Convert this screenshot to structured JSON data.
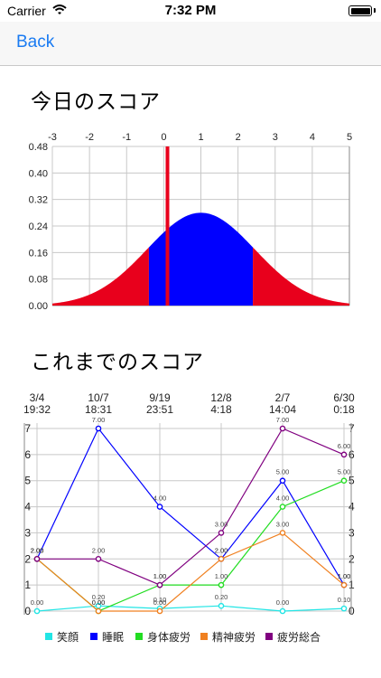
{
  "status_bar": {
    "carrier": "Carrier",
    "time": "7:32 PM"
  },
  "nav": {
    "back_label": "Back"
  },
  "sections": {
    "today_title": "今日のスコア",
    "history_title": "これまでのスコア"
  },
  "colors": {
    "accent": "#1a7bf2",
    "red": "#e8001c",
    "blue": "#0000ff"
  },
  "chart_data": [
    {
      "type": "area",
      "title": "",
      "x_top_ticks": [
        "-3",
        "-2",
        "-1",
        "0",
        "1",
        "2",
        "3",
        "4",
        "5"
      ],
      "y_ticks": [
        "0.48",
        "0.40",
        "0.32",
        "0.24",
        "0.16",
        "0.08",
        "0.00"
      ],
      "xlim": [
        -3,
        5
      ],
      "ylim": [
        0,
        0.48
      ],
      "distribution": {
        "mean": 1,
        "sd": 1.45
      },
      "blue_range": [
        -0.4,
        2.4
      ],
      "marker_x": 0.1,
      "grid": true
    },
    {
      "type": "line",
      "title": "",
      "categories": [
        "3/4\n19:32",
        "10/7\n18:31",
        "9/19\n23:51",
        "12/8\n4:18",
        "2/7\n14:04",
        "6/30\n0:18"
      ],
      "y_ticks": [
        "0",
        "1",
        "2",
        "3",
        "4",
        "5",
        "6",
        "7"
      ],
      "ylim": [
        0,
        7
      ],
      "grid": true,
      "series": [
        {
          "name": "笑顔",
          "color": "#22e5e5",
          "values": [
            0,
            0.2,
            0.1,
            0.2,
            0,
            0.1
          ]
        },
        {
          "name": "睡眠",
          "color": "#0000ff",
          "values": [
            2,
            7,
            4,
            2,
            5,
            1
          ]
        },
        {
          "name": "身体疲労",
          "color": "#22dd22",
          "values": [
            2,
            0,
            1,
            1,
            4,
            5
          ]
        },
        {
          "name": "精神疲労",
          "color": "#f08020",
          "values": [
            2,
            0,
            0,
            2,
            3,
            1
          ]
        },
        {
          "name": "疲労総合",
          "color": "#800080",
          "values": [
            2,
            2,
            1,
            3,
            7,
            6
          ]
        }
      ]
    }
  ]
}
